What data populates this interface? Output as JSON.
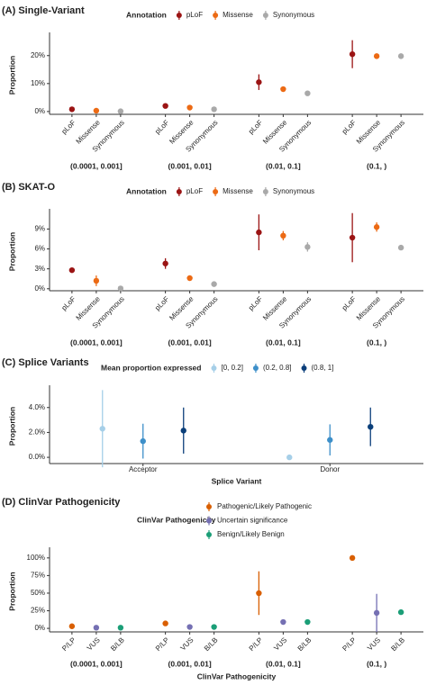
{
  "chart_data": [
    {
      "type": "errorbar",
      "title": "(A) Single-Variant",
      "y_label": "Proportion",
      "legend_title": "Annotation",
      "categories": [
        "(0.0001, 0.001]",
        "(0.001, 0.01]",
        "(0.01, 0.1]",
        "(0.1, )"
      ],
      "series": [
        {
          "name": "pLoF",
          "color": "#9b1414",
          "values": [
            0.8,
            2.0,
            10.5,
            20.5
          ],
          "errors": [
            0.3,
            0.4,
            2.8,
            5
          ]
        },
        {
          "name": "Missense",
          "color": "#ec6a14",
          "values": [
            0.3,
            1.4,
            8.0,
            19.8
          ],
          "errors": [
            0.2,
            0.3,
            0.6,
            0.5
          ]
        },
        {
          "name": "Synonymous",
          "color": "#a9a9a9",
          "values": [
            0.1,
            0.8,
            6.5,
            19.8
          ],
          "errors": [
            0.1,
            0.3,
            0.5,
            0.5
          ]
        }
      ],
      "ylim": [
        -1,
        27
      ],
      "yticks": [
        {
          "value": 0,
          "label": "0%"
        },
        {
          "value": 10,
          "label": "10%"
        },
        {
          "value": 20,
          "label": "20%"
        }
      ]
    },
    {
      "type": "errorbar",
      "title": "(B) SKAT-O",
      "y_label": "Proportion",
      "legend_title": "Annotation",
      "categories": [
        "(0.0001, 0.001]",
        "(0.001, 0.01]",
        "(0.01, 0.1]",
        "(0.1, )"
      ],
      "series": [
        {
          "name": "pLoF",
          "color": "#9b1414",
          "values": [
            2.8,
            3.8,
            8.5,
            7.7
          ],
          "errors": [
            0.2,
            0.8,
            2.7,
            3.7
          ]
        },
        {
          "name": "Missense",
          "color": "#ec6a14",
          "values": [
            1.2,
            1.6,
            8.0,
            9.3
          ],
          "errors": [
            0.8,
            0.2,
            0.7,
            0.7
          ]
        },
        {
          "name": "Synonymous",
          "color": "#a9a9a9",
          "values": [
            0.05,
            0.7,
            6.3,
            6.2
          ],
          "errors": [
            0.1,
            0.2,
            0.7,
            0.2
          ]
        }
      ],
      "ylim": [
        -0.3,
        11.5
      ],
      "yticks": [
        {
          "value": 0,
          "label": "0%"
        },
        {
          "value": 3,
          "label": "3%"
        },
        {
          "value": 6,
          "label": "6%"
        },
        {
          "value": 9,
          "label": "9%"
        }
      ]
    },
    {
      "type": "errorbar",
      "title": "(C) Splice Variants",
      "y_label": "Proportion",
      "x_label": "Splice Variant",
      "legend_title": "Mean proportion expressed",
      "categories": [
        "Acceptor",
        "Donor"
      ],
      "series": [
        {
          "name": "[0, 0.2]",
          "color": "#a6cfe8",
          "values": [
            2.3,
            0.0
          ],
          "errors": [
            3.1,
            0
          ]
        },
        {
          "name": "(0.2, 0.8]",
          "color": "#3d8fc9",
          "values": [
            1.3,
            1.4
          ],
          "errors": [
            1.4,
            1.25
          ]
        },
        {
          "name": "(0.8, 1]",
          "color": "#0b3f7a",
          "values": [
            2.15,
            2.45
          ],
          "errors": [
            1.85,
            1.55
          ]
        }
      ],
      "ylim": [
        -0.5,
        5.5
      ],
      "yticks": [
        {
          "value": 0,
          "label": "0.0%"
        },
        {
          "value": 2,
          "label": "2.0%"
        },
        {
          "value": 4,
          "label": "4.0%"
        }
      ]
    },
    {
      "type": "errorbar",
      "title": "(D) ClinVar Pathogenicity",
      "y_label": "Proportion",
      "x_label": "ClinVar Pathogenicity",
      "legend_title": "ClinVar Pathogenicity",
      "categories": [
        "(0.0001, 0.001]",
        "(0.001, 0.01]",
        "(0.01, 0.1]",
        "(0.1, )"
      ],
      "series_labels": [
        "P/LP",
        "VUS",
        "B/LB"
      ],
      "series": [
        {
          "name": "Pathogenic/Likely Pathogenic",
          "color": "#d95f02",
          "values": [
            3,
            7,
            50,
            100
          ],
          "errors": [
            0.5,
            0.5,
            31,
            0.5
          ]
        },
        {
          "name": "Uncertain significance",
          "color": "#7570b3",
          "values": [
            1,
            2,
            9,
            22
          ],
          "errors": [
            0.5,
            0.5,
            3,
            27
          ]
        },
        {
          "name": "Benign/Likely Benign",
          "color": "#1b9e77",
          "values": [
            1,
            2,
            9,
            23
          ],
          "errors": [
            0.5,
            0.5,
            1,
            1
          ]
        }
      ],
      "ylim": [
        -5,
        110
      ],
      "yticks": [
        {
          "value": 0,
          "label": "0%"
        },
        {
          "value": 25,
          "label": "25%"
        },
        {
          "value": 50,
          "label": "50%"
        },
        {
          "value": 75,
          "label": "75%"
        },
        {
          "value": 100,
          "label": "100%"
        }
      ]
    }
  ]
}
